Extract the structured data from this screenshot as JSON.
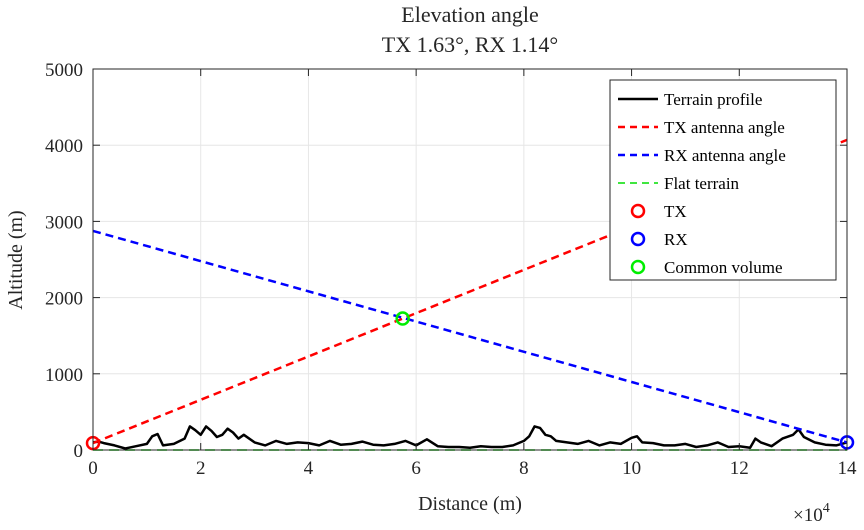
{
  "chart_data": {
    "type": "line",
    "title": [
      "Elevation angle",
      "TX 1.63°, RX 1.14°"
    ],
    "xlabel": "Distance (m)",
    "ylabel": "Altitude (m)",
    "x_exponent_label": "×10",
    "x_exponent_power": "4",
    "xlim": [
      0,
      140000
    ],
    "ylim": [
      0,
      5000
    ],
    "xticks": [
      0,
      20000,
      40000,
      60000,
      80000,
      100000,
      120000,
      140000
    ],
    "xtick_labels": [
      "0",
      "2",
      "4",
      "6",
      "8",
      "10",
      "12",
      "14"
    ],
    "yticks": [
      0,
      1000,
      2000,
      3000,
      4000,
      5000
    ],
    "ytick_labels": [
      "0",
      "1000",
      "2000",
      "3000",
      "4000",
      "5000"
    ],
    "grid": true,
    "legend_position": "top-right",
    "series": [
      {
        "name": "Terrain profile",
        "style": "solid",
        "color": "#000000",
        "x": [
          0,
          1000,
          2000,
          4000,
          6000,
          8000,
          10000,
          11000,
          12000,
          13000,
          15000,
          17000,
          18000,
          19000,
          20000,
          21000,
          22000,
          23000,
          24000,
          25000,
          26000,
          27000,
          28000,
          30000,
          32000,
          34000,
          36000,
          38000,
          40000,
          42000,
          44000,
          46000,
          48000,
          50000,
          52000,
          54000,
          56000,
          58000,
          60000,
          62000,
          64000,
          66000,
          68000,
          70000,
          72000,
          74000,
          76000,
          78000,
          80000,
          81000,
          82000,
          83000,
          84000,
          85000,
          86000,
          88000,
          90000,
          92000,
          94000,
          96000,
          98000,
          100000,
          101000,
          102000,
          104000,
          106000,
          108000,
          110000,
          112000,
          114000,
          116000,
          118000,
          120000,
          122000,
          123000,
          124000,
          126000,
          128000,
          130000,
          131000,
          132000,
          134000,
          136000,
          138000,
          140000
        ],
        "y": [
          100,
          110,
          90,
          60,
          20,
          50,
          80,
          180,
          210,
          60,
          80,
          150,
          310,
          260,
          200,
          310,
          250,
          170,
          200,
          280,
          230,
          150,
          200,
          100,
          60,
          120,
          80,
          100,
          90,
          60,
          120,
          70,
          80,
          110,
          70,
          60,
          80,
          120,
          60,
          140,
          50,
          40,
          40,
          30,
          50,
          40,
          40,
          60,
          120,
          180,
          310,
          290,
          200,
          180,
          120,
          100,
          80,
          120,
          60,
          100,
          80,
          160,
          180,
          100,
          90,
          60,
          60,
          80,
          40,
          60,
          100,
          40,
          50,
          30,
          150,
          100,
          50,
          150,
          200,
          270,
          170,
          100,
          70,
          60,
          100
        ]
      },
      {
        "name": "TX antenna angle",
        "style": "dashed",
        "color": "#ff0000",
        "x": [
          0,
          140000
        ],
        "y": [
          90,
          4070
        ]
      },
      {
        "name": "RX antenna angle",
        "style": "dashed",
        "color": "#0000ff",
        "x": [
          0,
          140000
        ],
        "y": [
          2875,
          100
        ]
      },
      {
        "name": "Flat terrain",
        "style": "dashed",
        "color": "#00dd00",
        "x": [
          0,
          140000
        ],
        "y": [
          0,
          0
        ]
      }
    ],
    "markers": [
      {
        "name": "TX",
        "x": 0,
        "y": 90,
        "color": "#ff0000"
      },
      {
        "name": "RX",
        "x": 140000,
        "y": 100,
        "color": "#0000ff"
      },
      {
        "name": "Common volume",
        "x": 57500,
        "y": 1725,
        "color": "#00ee00"
      }
    ]
  }
}
